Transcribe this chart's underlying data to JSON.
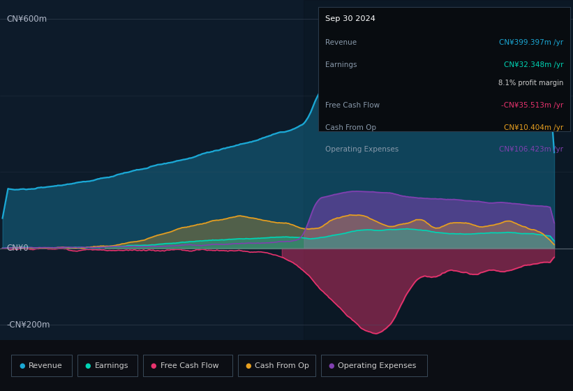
{
  "bg_color": "#0c0e14",
  "plot_bg_color": "#0d1b2a",
  "title": "Sep 30 2024",
  "ylabel_600": "CN¥600m",
  "ylabel_0": "CN¥0",
  "ylabel_200": "-CN¥200m",
  "ylim": [
    -240,
    650
  ],
  "xlim": [
    2013.7,
    2025.3
  ],
  "xticks": [
    2014,
    2015,
    2016,
    2017,
    2018,
    2019,
    2020,
    2021,
    2022,
    2023,
    2024
  ],
  "colors": {
    "revenue": "#1ba8d5",
    "earnings": "#00d4b4",
    "free_cash_flow": "#e8336e",
    "cash_from_op": "#e8a020",
    "operating_expenses": "#8040b0"
  },
  "info_box": {
    "date": "Sep 30 2024",
    "revenue_label": "Revenue",
    "revenue_value": "CN¥399.397m /yr",
    "earnings_label": "Earnings",
    "earnings_value": "CN¥32.348m /yr",
    "profit_margin": "8.1% profit margin",
    "fcf_label": "Free Cash Flow",
    "fcf_value": "-CN¥35.513m /yr",
    "cashop_label": "Cash From Op",
    "cashop_value": "CN¥10.404m /yr",
    "opex_label": "Operating Expenses",
    "opex_value": "CN¥106.423m /yr"
  },
  "legend": [
    {
      "label": "Revenue",
      "color": "#1ba8d5"
    },
    {
      "label": "Earnings",
      "color": "#00d4b4"
    },
    {
      "label": "Free Cash Flow",
      "color": "#e8336e"
    },
    {
      "label": "Cash From Op",
      "color": "#e8a020"
    },
    {
      "label": "Operating Expenses",
      "color": "#8040b0"
    }
  ]
}
